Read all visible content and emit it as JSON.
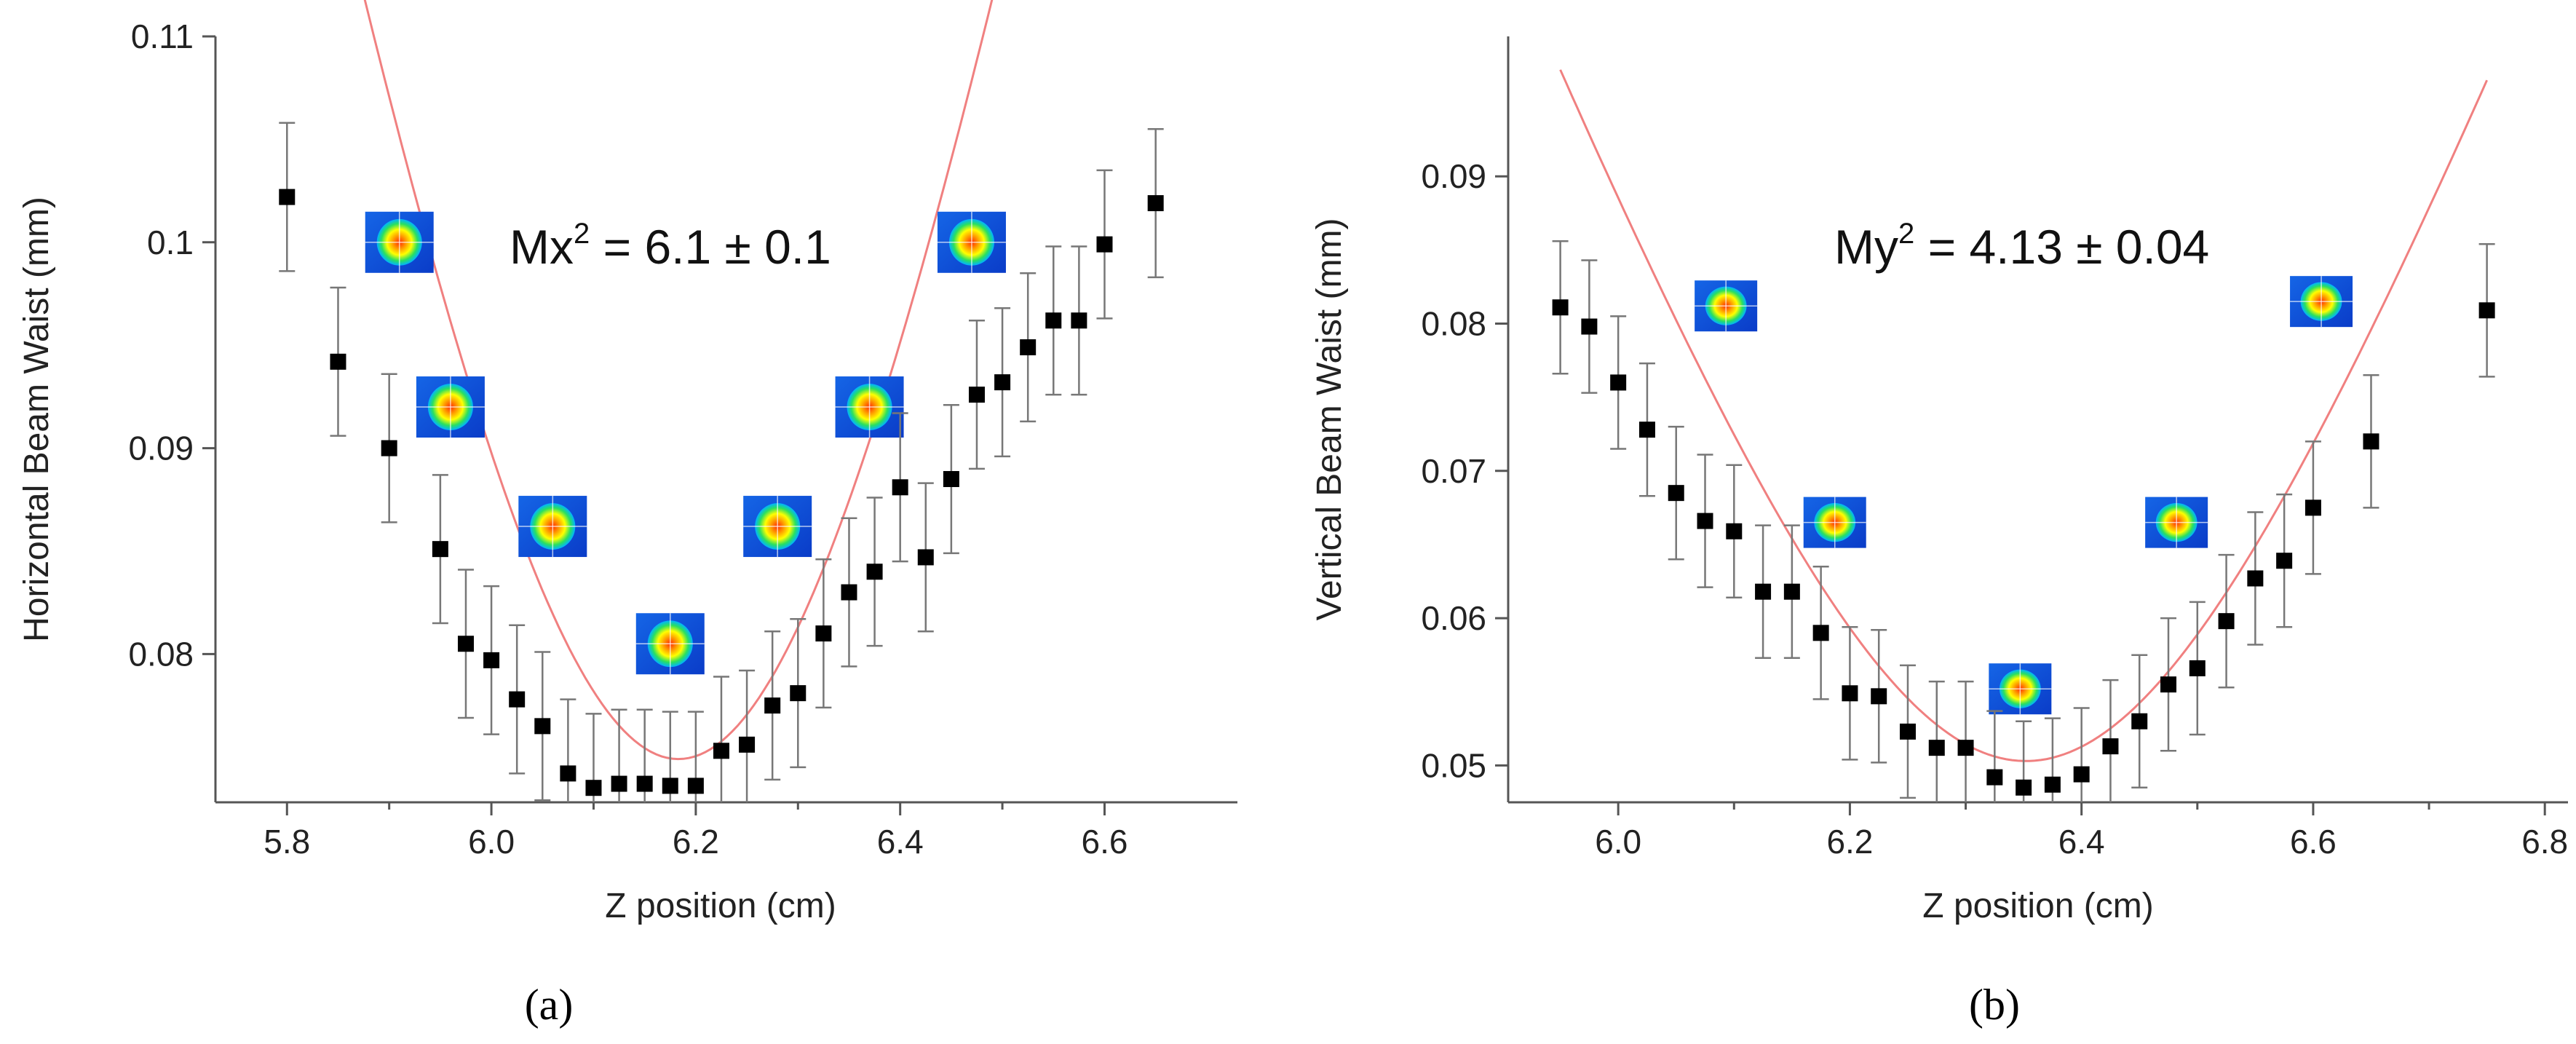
{
  "chart_data": [
    {
      "type": "scatter",
      "panel_label": "(a)",
      "xlabel": "Z position (cm)",
      "ylabel": "Horizontal Beam Waist (mm)",
      "xlim": [
        5.73,
        6.73
      ],
      "ylim": [
        0.0728,
        0.11
      ],
      "xticks": [
        5.8,
        6.0,
        6.2,
        6.4,
        6.6
      ],
      "xtick_labels": [
        "5.8",
        "6.0",
        "6.2",
        "6.4",
        "6.6"
      ],
      "yticks": [
        0.08,
        0.09,
        0.1,
        0.11
      ],
      "ytick_labels": [
        "0.08",
        "0.09",
        "0.1",
        "0.11"
      ],
      "annotation": {
        "base": "Mx",
        "sup": "2",
        "rest": " = 6.1 ± 0.1"
      },
      "fit_color": "#f08080",
      "fit": {
        "w0": 0.0749,
        "z0": 6.183,
        "zr": 0.277
      },
      "fit_range": [
        5.8,
        6.65
      ],
      "beam_profiles": [
        {
          "x": 5.91,
          "y": 0.1
        },
        {
          "x": 5.96,
          "y": 0.092
        },
        {
          "x": 6.06,
          "y": 0.0862
        },
        {
          "x": 6.175,
          "y": 0.0805
        },
        {
          "x": 6.28,
          "y": 0.0862
        },
        {
          "x": 6.37,
          "y": 0.092
        },
        {
          "x": 6.47,
          "y": 0.1
        }
      ],
      "series": [
        {
          "name": "Horizontal Beam Waist",
          "x": [
            5.8,
            5.85,
            5.9,
            5.95,
            5.975,
            6.0,
            6.025,
            6.05,
            6.075,
            6.1,
            6.125,
            6.15,
            6.175,
            6.2,
            6.225,
            6.25,
            6.275,
            6.3,
            6.325,
            6.35,
            6.375,
            6.4,
            6.425,
            6.45,
            6.475,
            6.5,
            6.525,
            6.55,
            6.575,
            6.6,
            6.65
          ],
          "y": [
            0.1022,
            0.0942,
            0.09,
            0.0851,
            0.0805,
            0.0797,
            0.0778,
            0.0765,
            0.0742,
            0.0735,
            0.0737,
            0.0737,
            0.0736,
            0.0736,
            0.0753,
            0.0756,
            0.0775,
            0.0781,
            0.081,
            0.083,
            0.084,
            0.0881,
            0.0847,
            0.0885,
            0.0926,
            0.0932,
            0.0949,
            0.0962,
            0.0962,
            0.0999,
            0.1019
          ],
          "err": [
            0.0036,
            0.0036,
            0.0036,
            0.0036,
            0.0036,
            0.0036,
            0.0036,
            0.0036,
            0.0036,
            0.0036,
            0.0036,
            0.0036,
            0.0036,
            0.0036,
            0.0036,
            0.0036,
            0.0036,
            0.0036,
            0.0036,
            0.0036,
            0.0036,
            0.0036,
            0.0036,
            0.0036,
            0.0036,
            0.0036,
            0.0036,
            0.0036,
            0.0036,
            0.0036,
            0.0036
          ]
        }
      ]
    },
    {
      "type": "scatter",
      "panel_label": "(b)",
      "xlabel": "Z position (cm)",
      "ylabel": "Vertical Beam Waist (mm)",
      "xlim": [
        5.905,
        6.82
      ],
      "ylim": [
        0.0475,
        0.0995
      ],
      "xticks": [
        6.0,
        6.2,
        6.4,
        6.6,
        6.8
      ],
      "xtick_labels": [
        "6.0",
        "6.2",
        "6.4",
        "6.6",
        "6.8"
      ],
      "yticks": [
        0.05,
        0.06,
        0.07,
        0.08,
        0.09
      ],
      "ytick_labels": [
        "0.05",
        "0.06",
        "0.07",
        "0.08",
        "0.09"
      ],
      "annotation": {
        "base": "My",
        "sup": "2",
        "rest": " = 4.13 ± 0.04"
      },
      "fit_color": "#f08080",
      "fit": {
        "w0": 0.0503,
        "z0": 6.352,
        "zr": 0.243
      },
      "fit_range": [
        5.95,
        6.75
      ],
      "beam_profiles": [
        {
          "x": 6.093,
          "y": 0.0812
        },
        {
          "x": 6.187,
          "y": 0.0665
        },
        {
          "x": 6.347,
          "y": 0.0552
        },
        {
          "x": 6.482,
          "y": 0.0665
        },
        {
          "x": 6.607,
          "y": 0.0815
        }
      ],
      "series": [
        {
          "name": "Vertical Beam Waist",
          "x": [
            5.95,
            5.975,
            6.0,
            6.025,
            6.05,
            6.075,
            6.1,
            6.125,
            6.15,
            6.175,
            6.2,
            6.225,
            6.25,
            6.275,
            6.3,
            6.325,
            6.35,
            6.375,
            6.4,
            6.425,
            6.45,
            6.475,
            6.5,
            6.525,
            6.55,
            6.575,
            6.6,
            6.65,
            6.75
          ],
          "y": [
            0.0811,
            0.0798,
            0.076,
            0.0728,
            0.0685,
            0.0666,
            0.0659,
            0.0618,
            0.0618,
            0.059,
            0.0549,
            0.0547,
            0.0523,
            0.0512,
            0.0512,
            0.0492,
            0.0485,
            0.0487,
            0.0494,
            0.0513,
            0.053,
            0.0555,
            0.0566,
            0.0598,
            0.0627,
            0.0639,
            0.0675,
            0.072,
            0.0809
          ],
          "err": [
            0.0045,
            0.0045,
            0.0045,
            0.0045,
            0.0045,
            0.0045,
            0.0045,
            0.0045,
            0.0045,
            0.0045,
            0.0045,
            0.0045,
            0.0045,
            0.0045,
            0.0045,
            0.0045,
            0.0045,
            0.0045,
            0.0045,
            0.0045,
            0.0045,
            0.0045,
            0.0045,
            0.0045,
            0.0045,
            0.0045,
            0.0045,
            0.0045,
            0.0045
          ]
        }
      ]
    }
  ]
}
